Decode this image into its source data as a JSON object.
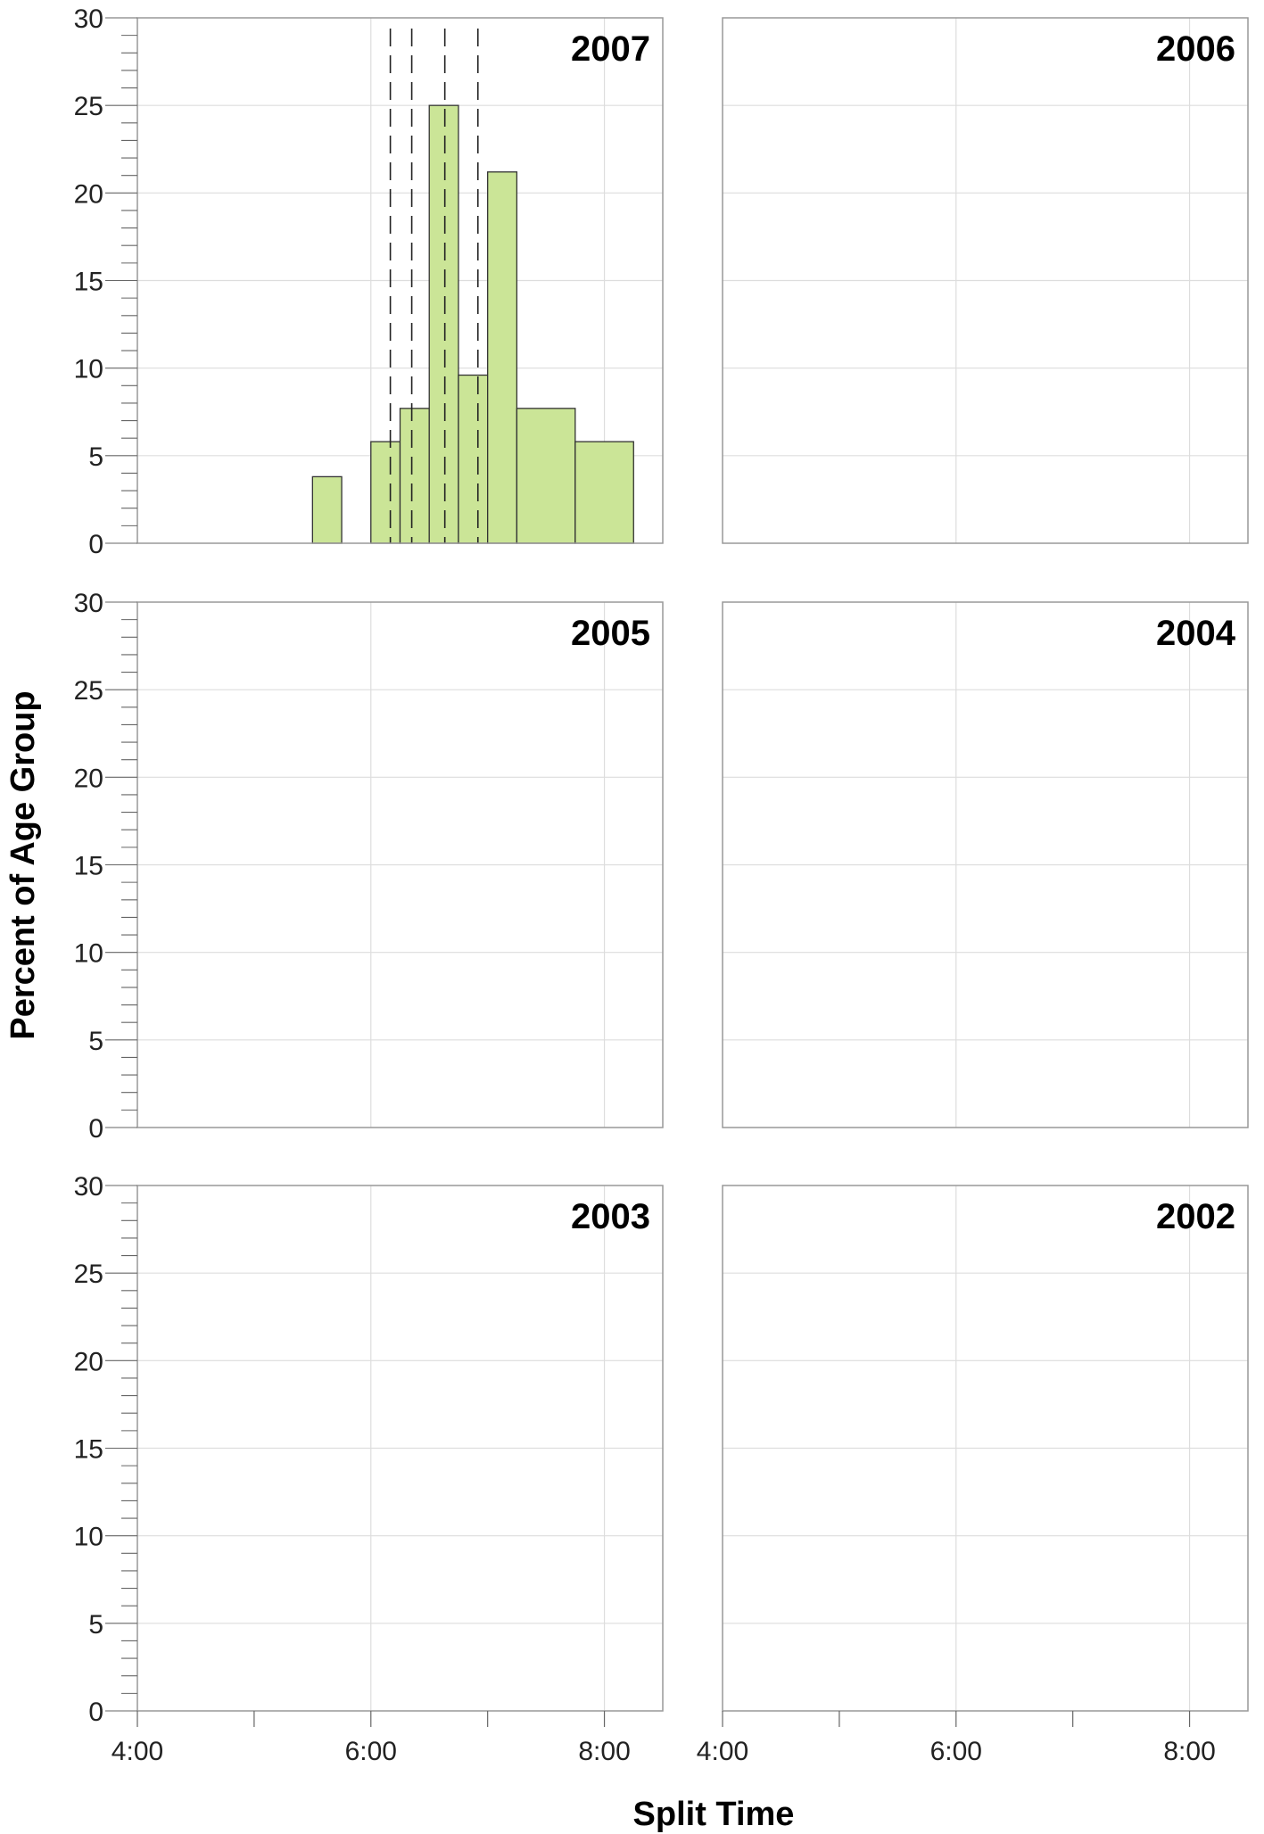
{
  "chart_data": {
    "type": "bar",
    "subtype": "faceted-histogram",
    "xlabel": "Split Time",
    "ylabel": "Percent of Age Group",
    "ylim": [
      0,
      30
    ],
    "y_ticks": [
      0,
      5,
      10,
      15,
      20,
      25,
      30
    ],
    "xlim": [
      "4:00",
      "8:30"
    ],
    "x_tick_labels": [
      "4:00",
      "6:00",
      "8:00"
    ],
    "x_major_ticks": [
      "4:00",
      "5:00",
      "6:00",
      "7:00",
      "8:00"
    ],
    "grid": true,
    "colors": {
      "bar_fill": "#cbe597",
      "bar_stroke": "#333333",
      "grid": "#dddddd",
      "frame": "#999999",
      "reference_line": "#222222"
    },
    "panels": [
      {
        "title": "2007",
        "bins": [
          {
            "start": "5:30",
            "end": "5:45",
            "value": 3.8
          },
          {
            "start": "5:45",
            "end": "6:00",
            "value": 0
          },
          {
            "start": "6:00",
            "end": "6:15",
            "value": 5.8
          },
          {
            "start": "6:15",
            "end": "6:30",
            "value": 7.7
          },
          {
            "start": "6:30",
            "end": "6:45",
            "value": 25.0
          },
          {
            "start": "6:45",
            "end": "7:00",
            "value": 9.6
          },
          {
            "start": "7:00",
            "end": "7:15",
            "value": 21.2
          },
          {
            "start": "7:15",
            "end": "7:45",
            "value": 7.7
          },
          {
            "start": "7:45",
            "end": "8:15",
            "value": 5.8
          }
        ],
        "reference_lines": [
          "6:10",
          "6:21",
          "6:38",
          "6:55"
        ]
      },
      {
        "title": "2006",
        "bins": [],
        "reference_lines": []
      },
      {
        "title": "2005",
        "bins": [],
        "reference_lines": []
      },
      {
        "title": "2004",
        "bins": [],
        "reference_lines": []
      },
      {
        "title": "2003",
        "bins": [],
        "reference_lines": []
      },
      {
        "title": "2002",
        "bins": [],
        "reference_lines": []
      }
    ]
  }
}
